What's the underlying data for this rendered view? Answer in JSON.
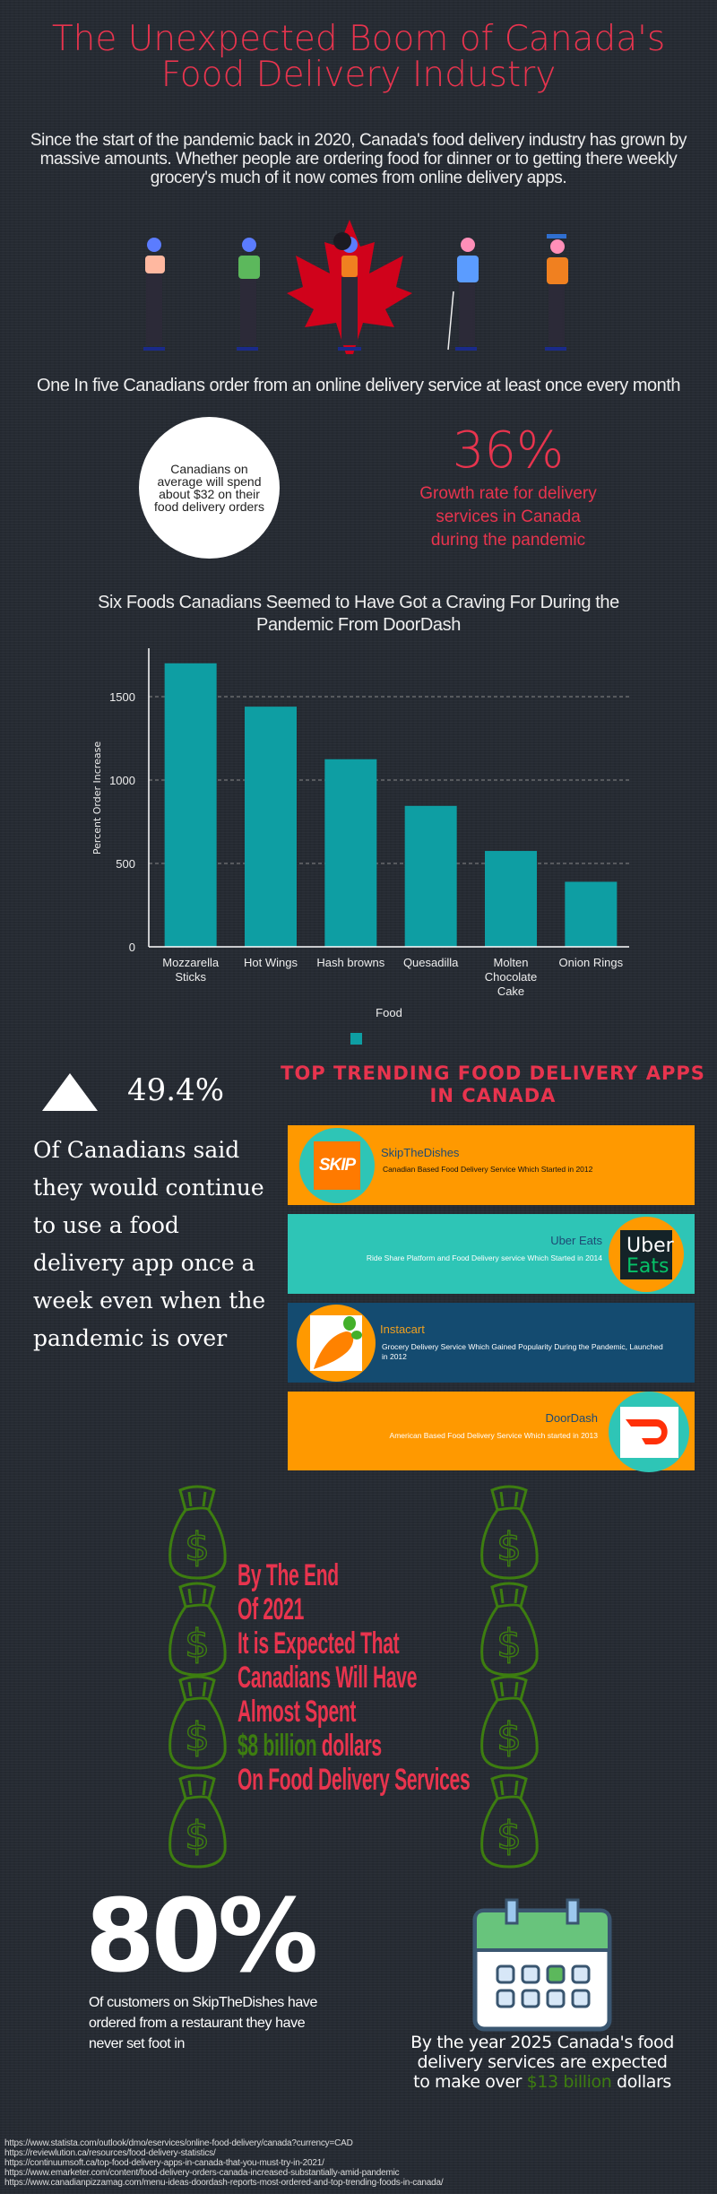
{
  "header": {
    "title_line1": "The Unexpected Boom of Canada's",
    "title_line2": "Food Delivery Industry"
  },
  "intro": "Since the start of the pandemic back in 2020, Canada's food delivery industry has grown by massive amounts. Whether people are ordering food for dinner or to getting there weekly grocery's much of it now comes from online delivery apps.",
  "one_in_five": "One In five Canadians order from an online delivery service at least once every month",
  "spend_circle": "Canadians on average will spend about $32 on their food delivery orders",
  "growth": {
    "value": "36%",
    "label": "Growth rate for delivery services in Canada during the pandemic"
  },
  "chart_title": "Six Foods Canadians Seemed to Have Got a Craving For During the Pandemic From DoorDash",
  "chart_data": {
    "type": "bar",
    "categories": [
      "Mozzarella Sticks",
      "Hot Wings",
      "Hash browns",
      "Quesadilla",
      "Molten Chocolate Cake",
      "Onion Rings"
    ],
    "category_lines": [
      [
        "Mozzarella",
        "Sticks"
      ],
      [
        "Hot Wings"
      ],
      [
        "Hash browns"
      ],
      [
        "Quesadilla"
      ],
      [
        "Molten",
        "Chocolate",
        "Cake"
      ],
      [
        "Onion Rings"
      ]
    ],
    "values": [
      1700,
      1440,
      1125,
      845,
      575,
      390
    ],
    "xlabel": "Food",
    "ylabel": "Percent Order Increase",
    "ylim": [
      0,
      1800
    ],
    "yticks": [
      0,
      500,
      1000,
      1500
    ],
    "grid": true,
    "legend": "bottom-center",
    "color": "#0e9ea3"
  },
  "continue_stat": {
    "value": "49.4%",
    "text": "Of Canadians said they would continue to use a food delivery app once a week even when the pandemic is over"
  },
  "apps": {
    "title": "Top Trending Food Delivery Apps in Canada",
    "items": [
      {
        "name": "SkipTheDishes",
        "desc": "Canadian Based Food Delivery Service Which Started in 2012",
        "logo_text": "SKIP"
      },
      {
        "name": "Uber Eats",
        "desc": "Ride Share Platform and Food Delivery service Which Started in 2014",
        "logo_text1": "Uber",
        "logo_text2": "Eats"
      },
      {
        "name": "Instacart",
        "desc": "Grocery Delivery Service Which Gained Popularity During the Pandemic, Launched in 2012"
      },
      {
        "name": "DoorDash",
        "desc": "American Based Food Delivery Service Which started in 2013"
      }
    ]
  },
  "spending": {
    "lines": [
      "By The End",
      "Of 2021",
      "It is Expected That",
      "Canadians Will Have",
      "Almost Spent"
    ],
    "amount": "$8 billion",
    "amount_suffix": " dollars",
    "last": "On Food Delivery Services"
  },
  "skip_stat": {
    "value": "80%",
    "text": "Of customers on SkipTheDishes have ordered from a restaurant they have never set foot in"
  },
  "forecast": {
    "prefix": "By the year 2025 Canada's food delivery services are expected to make over ",
    "amount": "$13 billion",
    "suffix": " dollars"
  },
  "references": [
    "https://www.statista.com/outlook/dmo/eservices/online-food-delivery/canada?currency=CAD",
    "https://reviewlution.ca/resources/food-delivery-statistics/",
    "https://continuumsoft.ca/top-food-delivery-apps-in-canada-that-you-must-try-in-2021/",
    "https://www.emarketer.com/content/food-delivery-orders-canada-increased-substantially-amid-pandemic",
    "https://www.canadianpizzamag.com/menu-ideas-doordash-reports-most-ordered-and-top-trending-foods-in-canada/"
  ],
  "colors": {
    "accent": "#e8344e",
    "teal": "#2ec5b6",
    "orange": "#ff9900",
    "navy": "#144b70",
    "green": "#3d7d10"
  }
}
